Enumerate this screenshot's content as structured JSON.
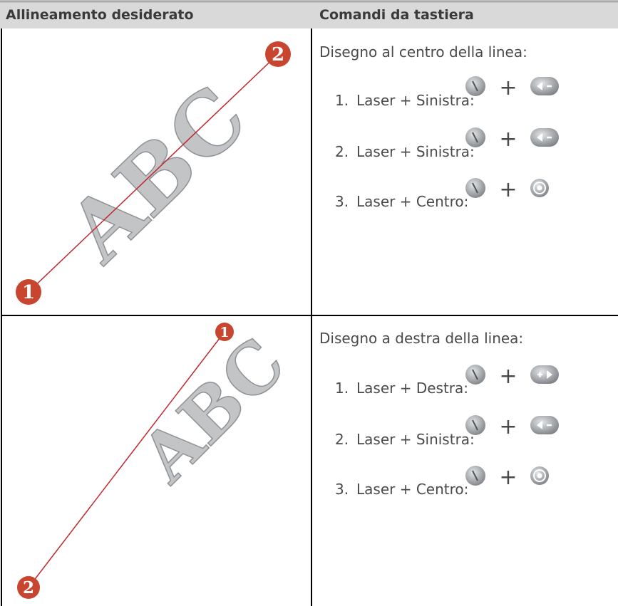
{
  "table": {
    "headers": [
      "Allineamento desiderato",
      "Comandi da tastiera"
    ],
    "rows": [
      {
        "diagram": {
          "text": "ABC",
          "markers": [
            "2",
            "1"
          ]
        },
        "commands": {
          "title": "Disegno al centro della linea:",
          "steps": [
            {
              "number": "1.",
              "label": "Laser + Sinistra:",
              "plus": "+"
            },
            {
              "number": "2.",
              "label": "Laser + Sinistra:",
              "plus": "+"
            },
            {
              "number": "3.",
              "label": "Laser + Centro:",
              "plus": "+"
            }
          ]
        }
      },
      {
        "diagram": {
          "text": "ABC",
          "markers": [
            "1",
            "2"
          ]
        },
        "commands": {
          "title": "Disegno a destra della linea:",
          "steps": [
            {
              "number": "1.",
              "label": "Laser + Destra:",
              "plus": "+"
            },
            {
              "number": "2.",
              "label": "Laser + Sinistra:",
              "plus": "+"
            },
            {
              "number": "3.",
              "label": "Laser + Centro:",
              "plus": "+"
            }
          ]
        }
      }
    ]
  }
}
